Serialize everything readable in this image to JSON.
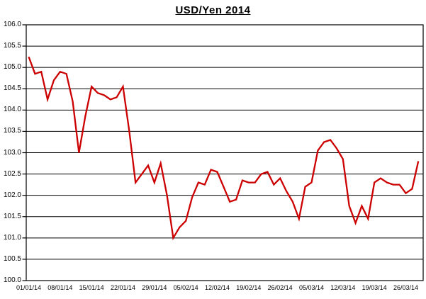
{
  "chart_data": {
    "type": "line",
    "title": "USD/Yen 2014",
    "grid": "horizontal",
    "legend": "none",
    "background_color": "#FFFFFF",
    "border_color": "#000000",
    "gridline_color": "#000000",
    "x_axis": {
      "tick_labels": [
        "01/01/14",
        "08/01/14",
        "15/01/14",
        "22/01/14",
        "29/01/14",
        "05/02/14",
        "12/02/14",
        "19/02/14",
        "26/02/14",
        "05/03/14",
        "12/03/14",
        "19/03/14",
        "26/03/14"
      ]
    },
    "y_axis": {
      "min": 100.0,
      "max": 106.0,
      "tick_step": 0.5,
      "tick_labels": [
        "100.0",
        "100.5",
        "101.0",
        "101.5",
        "102.0",
        "102.5",
        "103.0",
        "103.5",
        "104.0",
        "104.5",
        "105.0",
        "105.5",
        "106.0"
      ]
    },
    "series": [
      {
        "name": "USD/Yen",
        "color": "#CC0000",
        "dates": [
          "01/01/14",
          "02/01/14",
          "03/01/14",
          "06/01/14",
          "07/01/14",
          "08/01/14",
          "09/01/14",
          "10/01/14",
          "13/01/14",
          "14/01/14",
          "15/01/14",
          "16/01/14",
          "17/01/14",
          "20/01/14",
          "21/01/14",
          "22/01/14",
          "23/01/14",
          "24/01/14",
          "27/01/14",
          "28/01/14",
          "29/01/14",
          "30/01/14",
          "31/01/14",
          "03/02/14",
          "04/02/14",
          "05/02/14",
          "06/02/14",
          "07/02/14",
          "10/02/14",
          "11/02/14",
          "12/02/14",
          "13/02/14",
          "14/02/14",
          "17/02/14",
          "18/02/14",
          "19/02/14",
          "20/02/14",
          "21/02/14",
          "24/02/14",
          "25/02/14",
          "26/02/14",
          "27/02/14",
          "28/02/14",
          "03/03/14",
          "04/03/14",
          "05/03/14",
          "06/03/14",
          "07/03/14",
          "10/03/14",
          "11/03/14",
          "12/03/14",
          "13/03/14",
          "14/03/14",
          "17/03/14",
          "18/03/14",
          "19/03/14",
          "20/03/14",
          "21/03/14",
          "24/03/14",
          "25/03/14",
          "26/03/14",
          "27/03/14",
          "28/03/14"
        ],
        "values": [
          105.25,
          104.85,
          104.9,
          104.25,
          104.7,
          104.9,
          104.85,
          104.2,
          103.0,
          103.85,
          104.55,
          104.4,
          104.35,
          104.25,
          104.3,
          104.55,
          103.5,
          102.3,
          102.5,
          102.7,
          102.3,
          102.75,
          102.0,
          101.0,
          101.25,
          101.4,
          101.95,
          102.3,
          102.25,
          102.6,
          102.55,
          102.2,
          101.85,
          101.9,
          102.35,
          102.3,
          102.3,
          102.5,
          102.55,
          102.25,
          102.4,
          102.1,
          101.85,
          101.45,
          102.2,
          102.3,
          103.05,
          103.25,
          103.3,
          103.1,
          102.85,
          101.75,
          101.35,
          101.75,
          101.45,
          102.3,
          102.4,
          102.3,
          102.25,
          102.25,
          102.05,
          102.15,
          102.8
        ]
      }
    ]
  }
}
